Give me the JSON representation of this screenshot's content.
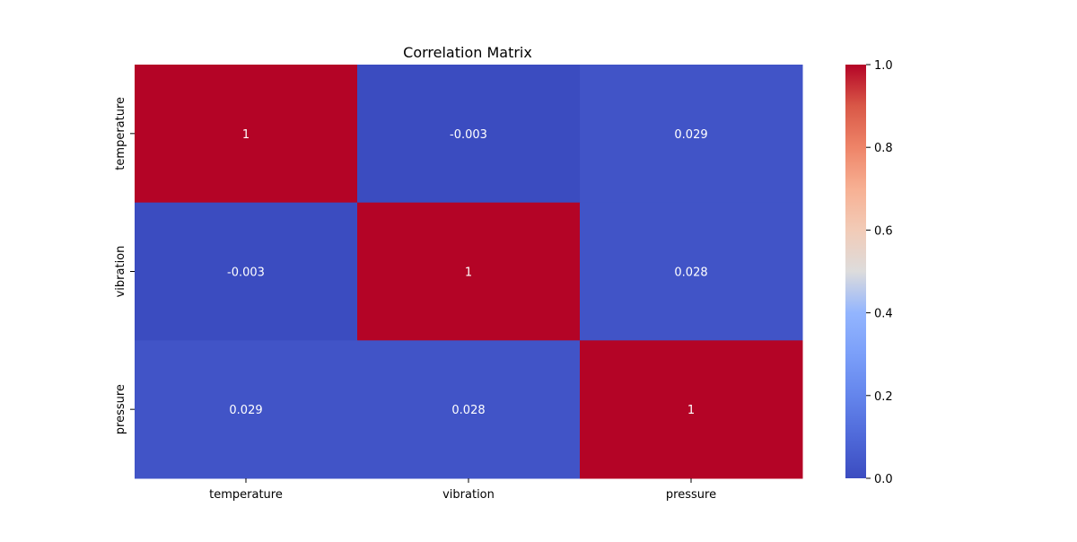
{
  "chart_data": {
    "type": "heatmap",
    "title": "Correlation Matrix",
    "x_categories": [
      "temperature",
      "vibration",
      "pressure"
    ],
    "y_categories": [
      "temperature",
      "vibration",
      "pressure"
    ],
    "matrix": [
      [
        1,
        -0.003,
        0.029
      ],
      [
        -0.003,
        1,
        0.028
      ],
      [
        0.029,
        0.028,
        1
      ]
    ],
    "annotations": [
      [
        "1",
        "-0.003",
        "0.029"
      ],
      [
        "-0.003",
        "1",
        "0.028"
      ],
      [
        "0.029",
        "0.028",
        "1"
      ]
    ],
    "colormap": "coolwarm",
    "colorbar": {
      "range": [
        0.0,
        1.0
      ],
      "ticks": [
        0.0,
        0.2,
        0.4,
        0.6,
        0.8,
        1.0
      ],
      "tick_labels": [
        "0.0",
        "0.2",
        "0.4",
        "0.6",
        "0.8",
        "1.0"
      ]
    },
    "colors": {
      "low": "#3b4cc0",
      "mid": "#dddddd",
      "high": "#b40426",
      "annotation_text": "#ffffff",
      "axis_text": "#000000"
    }
  }
}
